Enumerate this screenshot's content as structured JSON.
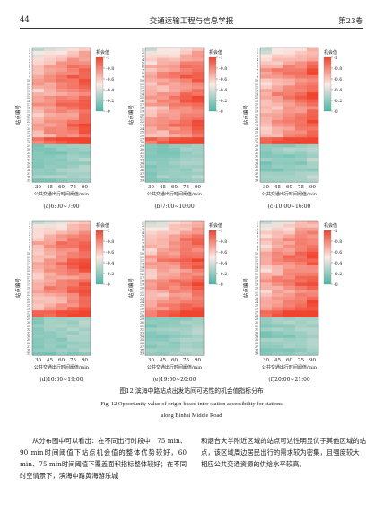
{
  "header": {
    "page_number": "44",
    "journal": "交通运输工程与信息学报",
    "volume": "第23卷"
  },
  "colors": {
    "high": "#f0442f",
    "mid": "#fbe8e3",
    "low": "#4ab7a6"
  },
  "colorbar": {
    "title": "机会值",
    "ticks": [
      "1",
      "0.8",
      "0.6",
      "0.4",
      "0.2",
      "0"
    ]
  },
  "axes": {
    "ylabel": "站点编号",
    "xlabel": "公共交通出行时间阈值/min",
    "xticks": [
      "30",
      "45",
      "60",
      "75",
      "90"
    ],
    "yticks": [
      "1",
      "2",
      "3",
      "4",
      "5",
      "6",
      "7",
      "8",
      "9",
      "10",
      "11",
      "12",
      "13",
      "14",
      "15",
      "16",
      "17",
      "18",
      "19",
      "20",
      "21",
      "22",
      "23",
      "24",
      "25",
      "26",
      "27",
      "28",
      "29",
      "30",
      "31",
      "32",
      "33",
      "34",
      "35",
      "36",
      "37",
      "38",
      "39"
    ]
  },
  "chart_data": [
    {
      "type": "heatmap",
      "title": "(a)6:00~7:00"
    },
    {
      "type": "heatmap",
      "title": "(b)7:00~10:00"
    },
    {
      "type": "heatmap",
      "title": "(c)10:00~16:00"
    },
    {
      "type": "heatmap",
      "title": "(d)16:00~19:00"
    },
    {
      "type": "heatmap",
      "title": "(e)19:00~20:00"
    },
    {
      "type": "heatmap",
      "title": "(f)20:00~21:00"
    }
  ],
  "caption": {
    "cn": "图12 滨海中路站点出发站间可达性的机会值指标分布",
    "en_line1": "Fig. 12 Opportunity value of origin-based inter-station accessibility for stations",
    "en_line2": "along Binhai Middle Road"
  },
  "body": {
    "left_col": "从分布图中可以看出：在不同出行时段中，75 min、90 min时间阈值下站点机会值的整体优势较好，60 min、75 min时间阈值下覆盖面积指标整体较好；在不同时空情景下，滨海中路黄海游乐城",
    "right_col": "和烟台大学附近区域的站点可达性明显优于其他区域的站点，该区域周边居民出行的需求较为密集，且强度较大，相应公共交通资源的供给水平较高。"
  }
}
